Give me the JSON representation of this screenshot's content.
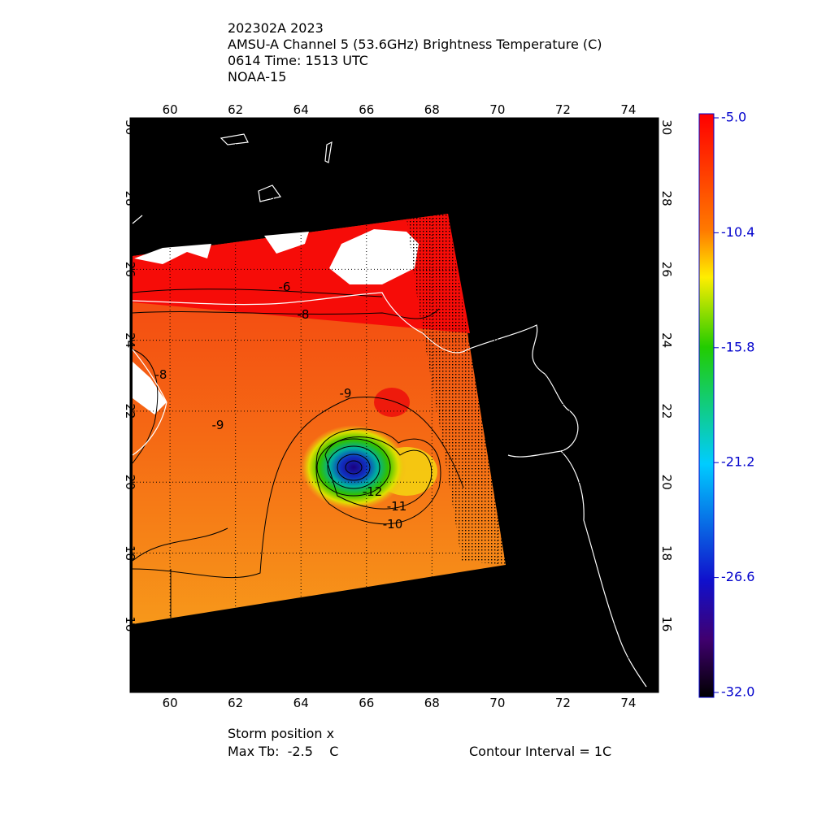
{
  "title_lines": [
    "202302A 2023",
    "AMSU-A Channel 5 (53.6GHz) Brightness Temperature (C)",
    "0614 Time: 1513 UTC",
    "NOAA-15"
  ],
  "map": {
    "xlim": [
      58.78,
      74.92
    ],
    "ylim": [
      14.07,
      30.27
    ],
    "xticks": [
      60,
      62,
      64,
      66,
      68,
      70,
      72,
      74
    ],
    "yticks": [
      16,
      18,
      20,
      22,
      24,
      26,
      28,
      30
    ],
    "contour_labels": [
      -6,
      -8,
      -8,
      -9,
      -9,
      -12,
      -11,
      -10
    ]
  },
  "colorbar": {
    "lim": [
      -32,
      -5
    ],
    "ticks": [
      {
        "value": -5,
        "label": "-5.0"
      },
      {
        "value": -10.4,
        "label": "-10.4"
      },
      {
        "value": -15.8,
        "label": "-15.8"
      },
      {
        "value": -21.2,
        "label": "-21.2"
      },
      {
        "value": -26.6,
        "label": "-26.6"
      },
      {
        "value": -32,
        "label": "-32.0"
      }
    ]
  },
  "footer": {
    "storm_position": "Storm position x",
    "max_tb": "Max Tb:  -2.5    C",
    "contour_interval": "Contour Interval = 1C"
  }
}
